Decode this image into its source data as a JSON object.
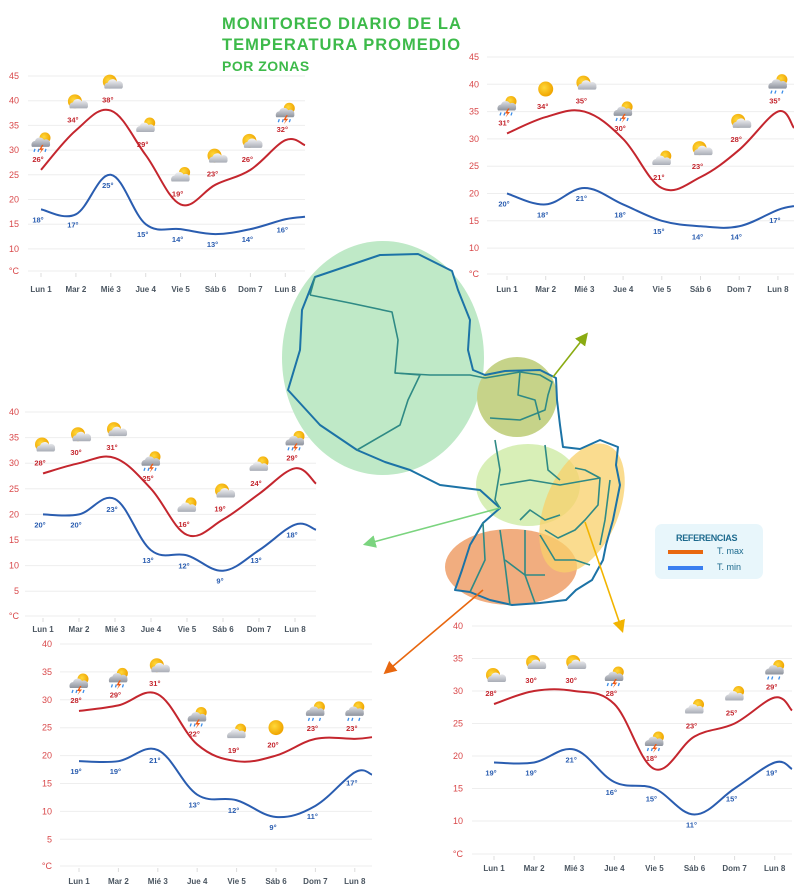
{
  "title": {
    "line1": "MONITOREO DIARIO DE LA",
    "line2": "TEMPERATURA PROMEDIO",
    "line3": "POR ZONAS"
  },
  "legend": {
    "heading": "REFERENCIAS",
    "items": [
      {
        "label": "T. max",
        "color": "#e8670f"
      },
      {
        "label": "T. min",
        "color": "#3a7ef0"
      }
    ]
  },
  "colors": {
    "title": "#3dba4a",
    "max_line": "#c4262e",
    "min_line": "#2a5db0",
    "axis_text": "#d9484a",
    "zone_chaco": "#bfe9c7",
    "zone_north_east": "#c6d389",
    "zone_center": "#d8efb7",
    "zone_east": "#f8d06a",
    "zone_south": "#f0a674"
  },
  "chart_data": [
    {
      "type": "line",
      "zone": "north-east",
      "unit": "°C",
      "yticks": [
        45,
        40,
        35,
        30,
        25,
        20,
        15,
        10
      ],
      "categories": [
        "Lun 1",
        "Mar 2",
        "Mié 3",
        "Jue 4",
        "Vie 5",
        "Sáb 6",
        "Dom 7",
        "Lun 8"
      ],
      "series": [
        {
          "name": "T. max",
          "values": [
            26,
            34,
            38,
            29,
            19,
            23,
            26,
            32
          ],
          "next": 31
        },
        {
          "name": "T. min",
          "values": [
            18,
            17,
            25,
            15,
            14,
            13,
            14,
            16
          ],
          "next": 16.5
        }
      ],
      "icons": [
        "storm",
        "partly-sunny",
        "partly-sunny",
        "cloudy",
        "cloudy",
        "partly-sunny",
        "partly-sunny",
        "storm"
      ],
      "grid": true
    },
    {
      "type": "line",
      "zone": "north",
      "unit": "°C",
      "yticks": [
        45,
        40,
        35,
        30,
        25,
        20,
        15,
        10
      ],
      "categories": [
        "Lun 1",
        "Mar 2",
        "Mié 3",
        "Jue 4",
        "Vie 5",
        "Sáb 6",
        "Dom 7",
        "Lun 8"
      ],
      "series": [
        {
          "name": "T. max",
          "values": [
            31,
            34,
            35,
            30,
            21,
            23,
            28,
            35
          ],
          "next": 32
        },
        {
          "name": "T. min",
          "values": [
            20,
            18,
            21,
            18,
            15,
            14,
            14,
            17
          ],
          "next": 17.7
        }
      ],
      "icons": [
        "storm",
        "sunny",
        "partly-sunny",
        "storm",
        "cloudy",
        "partly-sunny",
        "partly-sunny",
        "rain"
      ],
      "grid": true
    },
    {
      "type": "line",
      "zone": "center",
      "unit": "°C",
      "yticks": [
        40,
        35,
        30,
        25,
        20,
        15,
        10,
        5
      ],
      "categories": [
        "Lun 1",
        "Mar 2",
        "Mié 3",
        "Jue 4",
        "Vie 5",
        "Sáb 6",
        "Dom 7",
        "Lun 8"
      ],
      "series": [
        {
          "name": "T. max",
          "values": [
            28,
            30,
            31,
            25,
            16,
            19,
            24,
            29
          ],
          "next": 26
        },
        {
          "name": "T. min",
          "values": [
            20,
            20,
            23,
            13,
            12,
            9,
            13,
            18
          ],
          "next": 17
        }
      ],
      "icons": [
        "partly-sunny",
        "partly-sunny",
        "partly-sunny",
        "storm",
        "cloudy",
        "partly-sunny",
        "cloudy",
        "storm"
      ],
      "grid": true
    },
    {
      "type": "line",
      "zone": "south",
      "unit": "°C",
      "yticks": [
        40,
        35,
        30,
        25,
        20,
        15,
        10,
        5
      ],
      "categories": [
        "Lun 1",
        "Mar 2",
        "Mié 3",
        "Jue 4",
        "Vie 5",
        "Sáb 6",
        "Dom 7",
        "Lun 8"
      ],
      "series": [
        {
          "name": "T. max",
          "values": [
            28,
            29,
            31,
            22,
            19,
            20,
            23,
            23
          ],
          "next": 23.3
        },
        {
          "name": "T. min",
          "values": [
            19,
            19,
            21,
            13,
            12,
            9,
            11,
            17
          ],
          "next": 16.6
        }
      ],
      "icons": [
        "storm",
        "storm",
        "partly-sunny",
        "storm",
        "cloudy",
        "sunny",
        "rain",
        "rain"
      ],
      "grid": true
    },
    {
      "type": "line",
      "zone": "south-east",
      "unit": "°C",
      "yticks": [
        40,
        35,
        30,
        25,
        20,
        15,
        10
      ],
      "categories": [
        "Lun 1",
        "Mar 2",
        "Mié 3",
        "Jue 4",
        "Vie 5",
        "Sáb 6",
        "Dom 7",
        "Lun 8"
      ],
      "series": [
        {
          "name": "T. max",
          "values": [
            28,
            30,
            30,
            28,
            18,
            23,
            25,
            29
          ],
          "next": 27
        },
        {
          "name": "T. min",
          "values": [
            19,
            19,
            21,
            16,
            15,
            11,
            15,
            19
          ],
          "next": 18
        }
      ],
      "icons": [
        "partly-sunny",
        "partly-sunny",
        "partly-sunny",
        "storm",
        "storm",
        "cloudy",
        "cloudy",
        "rain"
      ],
      "grid": true
    }
  ]
}
